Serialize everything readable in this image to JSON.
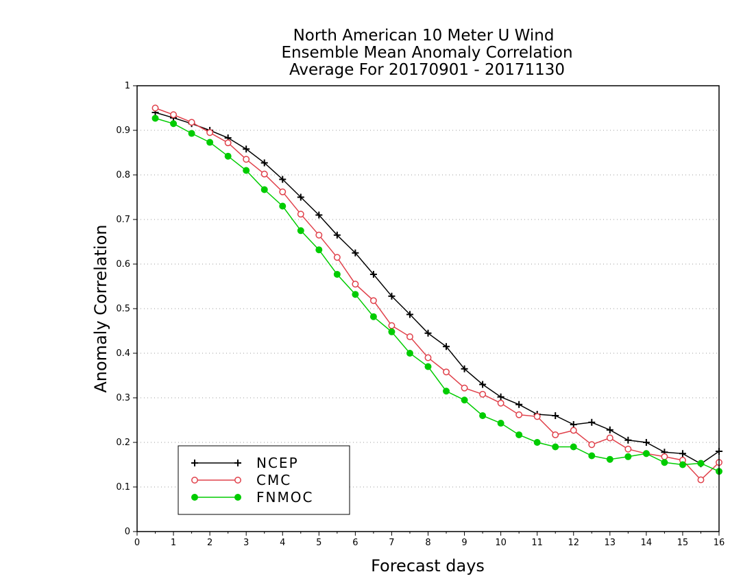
{
  "chart_data": {
    "type": "line",
    "title_lines": [
      "North American 10 Meter U Wind",
      "Ensemble Mean Anomaly Correlation",
      "Average For 20170901 - 20171130"
    ],
    "xlabel": "Forecast days",
    "ylabel": "Anomaly Correlation",
    "xlim": [
      0,
      16
    ],
    "ylim": [
      0,
      1
    ],
    "x_ticks": [
      "0",
      "1",
      "2",
      "3",
      "4",
      "5",
      "6",
      "7",
      "8",
      "9",
      "10",
      "11",
      "12",
      "13",
      "14",
      "15",
      "16"
    ],
    "y_ticks": [
      "0",
      "0.1",
      "0.2",
      "0.3",
      "0.4",
      "0.5",
      "0.6",
      "0.7",
      "0.8",
      "0.9",
      "1"
    ],
    "grid": "horizontal dotted",
    "legend_position": "bottom-left",
    "x": [
      0.5,
      1,
      1.5,
      2,
      2.5,
      3,
      3.5,
      4,
      4.5,
      5,
      5.5,
      6,
      6.5,
      7,
      7.5,
      8,
      8.5,
      9,
      9.5,
      10,
      10.5,
      11,
      11.5,
      12,
      12.5,
      13,
      13.5,
      14,
      14.5,
      15,
      15.5,
      16
    ],
    "series": [
      {
        "name": "NCEP",
        "color": "#000000",
        "marker": "plus",
        "values": [
          0.94,
          0.928,
          0.915,
          0.9,
          0.883,
          0.858,
          0.827,
          0.79,
          0.75,
          0.71,
          0.665,
          0.625,
          0.577,
          0.528,
          0.487,
          0.445,
          0.415,
          0.365,
          0.33,
          0.302,
          0.285,
          0.263,
          0.26,
          0.24,
          0.245,
          0.228,
          0.205,
          0.2,
          0.178,
          0.175,
          0.152,
          0.18
        ]
      },
      {
        "name": "CMC",
        "color": "#e0404a",
        "marker": "open-circle",
        "values": [
          0.95,
          0.935,
          0.918,
          0.895,
          0.872,
          0.835,
          0.802,
          0.762,
          0.712,
          0.665,
          0.615,
          0.555,
          0.518,
          0.462,
          0.437,
          0.39,
          0.358,
          0.322,
          0.308,
          0.288,
          0.262,
          0.258,
          0.217,
          0.227,
          0.195,
          0.21,
          0.185,
          0.175,
          0.168,
          0.16,
          0.116,
          0.155
        ]
      },
      {
        "name": "FNMOC",
        "color": "#00cc00",
        "marker": "filled-circle",
        "values": [
          0.927,
          0.915,
          0.893,
          0.873,
          0.842,
          0.81,
          0.767,
          0.73,
          0.675,
          0.632,
          0.577,
          0.532,
          0.482,
          0.448,
          0.4,
          0.37,
          0.315,
          0.295,
          0.26,
          0.243,
          0.217,
          0.2,
          0.19,
          0.19,
          0.17,
          0.162,
          0.168,
          0.175,
          0.155,
          0.15,
          0.153,
          0.135
        ]
      }
    ]
  }
}
